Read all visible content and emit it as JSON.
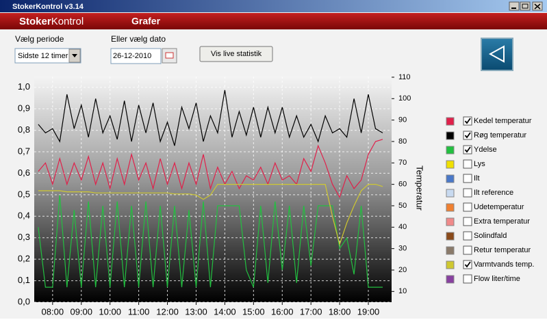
{
  "window": {
    "title": "StokerKontrol v3.14"
  },
  "header": {
    "logo_bold": "Stoker",
    "logo_rest": "Kontrol",
    "section": "Grafer"
  },
  "controls": {
    "period_label": "Vælg periode",
    "period_value": "Sidste 12 timer",
    "date_label": "Eller vælg dato",
    "date_value": "26-12-2010",
    "live_button": "Vis live statistik"
  },
  "chart_data": {
    "type": "line",
    "y2_label": "Temperatur",
    "grid": true,
    "xlim": [
      7.36,
      19.81
    ],
    "xticks": [
      {
        "value": 8,
        "label": "08:00"
      },
      {
        "value": 9,
        "label": "09:00"
      },
      {
        "value": 10,
        "label": "10:00"
      },
      {
        "value": 11,
        "label": "11:00"
      },
      {
        "value": 12,
        "label": "12:00"
      },
      {
        "value": 13,
        "label": "13:00"
      },
      {
        "value": 14,
        "label": "14:00"
      },
      {
        "value": 15,
        "label": "15:00"
      },
      {
        "value": 16,
        "label": "16:00"
      },
      {
        "value": 17,
        "label": "17:00"
      },
      {
        "value": 18,
        "label": "18:00"
      },
      {
        "value": 19,
        "label": "19:00"
      }
    ],
    "ylim": [
      0,
      1.05
    ],
    "yticks": [
      {
        "value": 0,
        "label": "0,0"
      },
      {
        "value": 0.1,
        "label": "0,1"
      },
      {
        "value": 0.2,
        "label": "0,2"
      },
      {
        "value": 0.3,
        "label": "0,3"
      },
      {
        "value": 0.4,
        "label": "0,4"
      },
      {
        "value": 0.5,
        "label": "0,5"
      },
      {
        "value": 0.6,
        "label": "0,6"
      },
      {
        "value": 0.7,
        "label": "0,7"
      },
      {
        "value": 0.8,
        "label": "0,8"
      },
      {
        "value": 0.9,
        "label": "0,9"
      },
      {
        "value": 1.0,
        "label": "1,0"
      }
    ],
    "y2lim": [
      5,
      110.3
    ],
    "y2ticks": [
      10,
      20,
      30,
      40,
      50,
      60,
      70,
      80,
      90,
      100,
      110
    ],
    "x": [
      7.5,
      7.75,
      8,
      8.25,
      8.5,
      8.75,
      9,
      9.25,
      9.5,
      9.75,
      10,
      10.25,
      10.5,
      10.75,
      11,
      11.25,
      11.5,
      11.75,
      12,
      12.25,
      12.5,
      12.75,
      13,
      13.25,
      13.5,
      13.75,
      14,
      14.25,
      14.5,
      14.75,
      15,
      15.25,
      15.5,
      15.75,
      16,
      16.25,
      16.5,
      16.75,
      17,
      17.25,
      17.5,
      17.75,
      18,
      18.25,
      18.5,
      18.75,
      19,
      19.25,
      19.5
    ],
    "series": [
      {
        "name": "Kedel temperatur",
        "color": "#e0204a",
        "checked": true,
        "axis": "y2",
        "values": [
          66,
          70,
          60,
          72,
          60,
          70,
          62,
          73,
          60,
          70,
          58,
          72,
          60,
          74,
          62,
          70,
          58,
          72,
          60,
          70,
          58,
          70,
          60,
          74,
          58,
          68,
          60,
          66,
          58,
          64,
          62,
          68,
          60,
          70,
          62,
          64,
          60,
          72,
          66,
          78,
          70,
          60,
          54,
          64,
          58,
          62,
          74,
          80,
          81
        ]
      },
      {
        "name": "Røg temperatur",
        "color": "#000000",
        "checked": true,
        "axis": "y2",
        "values": [
          88,
          84,
          86,
          80,
          102,
          86,
          97,
          82,
          100,
          84,
          92,
          81,
          99,
          80,
          97,
          84,
          98,
          80,
          89,
          78,
          96,
          86,
          98,
          80,
          92,
          84,
          104,
          82,
          94,
          83,
          96,
          82,
          96,
          84,
          96,
          82,
          92,
          82,
          88,
          80,
          92,
          84,
          86,
          82,
          100,
          84,
          102,
          86,
          84
        ]
      },
      {
        "name": "Ydelse",
        "color": "#22c040",
        "checked": true,
        "axis": "y2",
        "values": [
          40,
          12,
          12,
          55,
          12,
          48,
          12,
          52,
          12,
          50,
          12,
          52,
          12,
          50,
          12,
          52,
          12,
          50,
          12,
          50,
          12,
          48,
          12,
          52,
          12,
          50,
          50,
          50,
          50,
          20,
          12,
          50,
          14,
          52,
          20,
          50,
          14,
          50,
          22,
          50,
          50,
          50,
          30,
          35,
          18,
          50,
          12,
          12,
          12
        ]
      },
      {
        "name": "Lys",
        "color": "#f0e000",
        "checked": false
      },
      {
        "name": "Ilt",
        "color": "#4a78c8",
        "checked": false
      },
      {
        "name": "Ilt reference",
        "color": "#c8daf0",
        "checked": false
      },
      {
        "name": "Udetemperatur",
        "color": "#f08030",
        "checked": false
      },
      {
        "name": "Extra temperatur",
        "color": "#f08a8a",
        "checked": false
      },
      {
        "name": "Solindfald",
        "color": "#8a4a1a",
        "checked": false
      },
      {
        "name": "Retur temperatur",
        "color": "#8a7a6a",
        "checked": false
      },
      {
        "name": "Varmtvands temp.",
        "color": "#cfc830",
        "checked": true,
        "axis": "y2",
        "values": [
          57,
          57,
          57,
          57,
          56.5,
          56.5,
          56.5,
          56.5,
          56,
          56,
          56,
          56,
          56,
          56,
          56,
          56,
          56,
          56,
          56,
          55.5,
          55.5,
          55.5,
          55,
          53,
          55,
          60,
          60,
          60,
          60,
          60,
          60,
          60,
          60,
          60,
          60,
          60,
          60,
          60,
          60,
          60,
          60,
          45,
          32,
          42,
          50,
          57,
          60,
          60,
          59
        ]
      },
      {
        "name": "Flow liter/time",
        "color": "#8840a0",
        "checked": false
      }
    ]
  }
}
